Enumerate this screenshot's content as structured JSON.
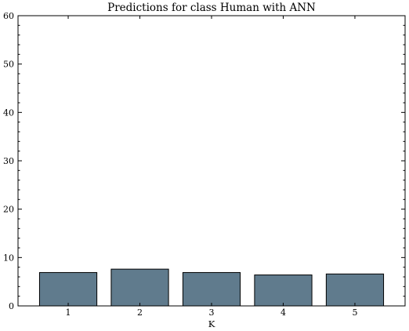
{
  "chart_data": {
    "type": "bar",
    "title": "Predictions for class Human with ANN",
    "xlabel": "K",
    "ylabel": "",
    "categories": [
      "1",
      "2",
      "3",
      "4",
      "5"
    ],
    "values": [
      6.9,
      7.6,
      6.9,
      6.4,
      6.6
    ],
    "ylim": [
      0,
      60
    ],
    "yticks": [
      0,
      10,
      20,
      30,
      40,
      50,
      60
    ],
    "bar_color": "#607b8d",
    "bar_edge_color": "#000000",
    "grid": false,
    "legend": "none"
  }
}
